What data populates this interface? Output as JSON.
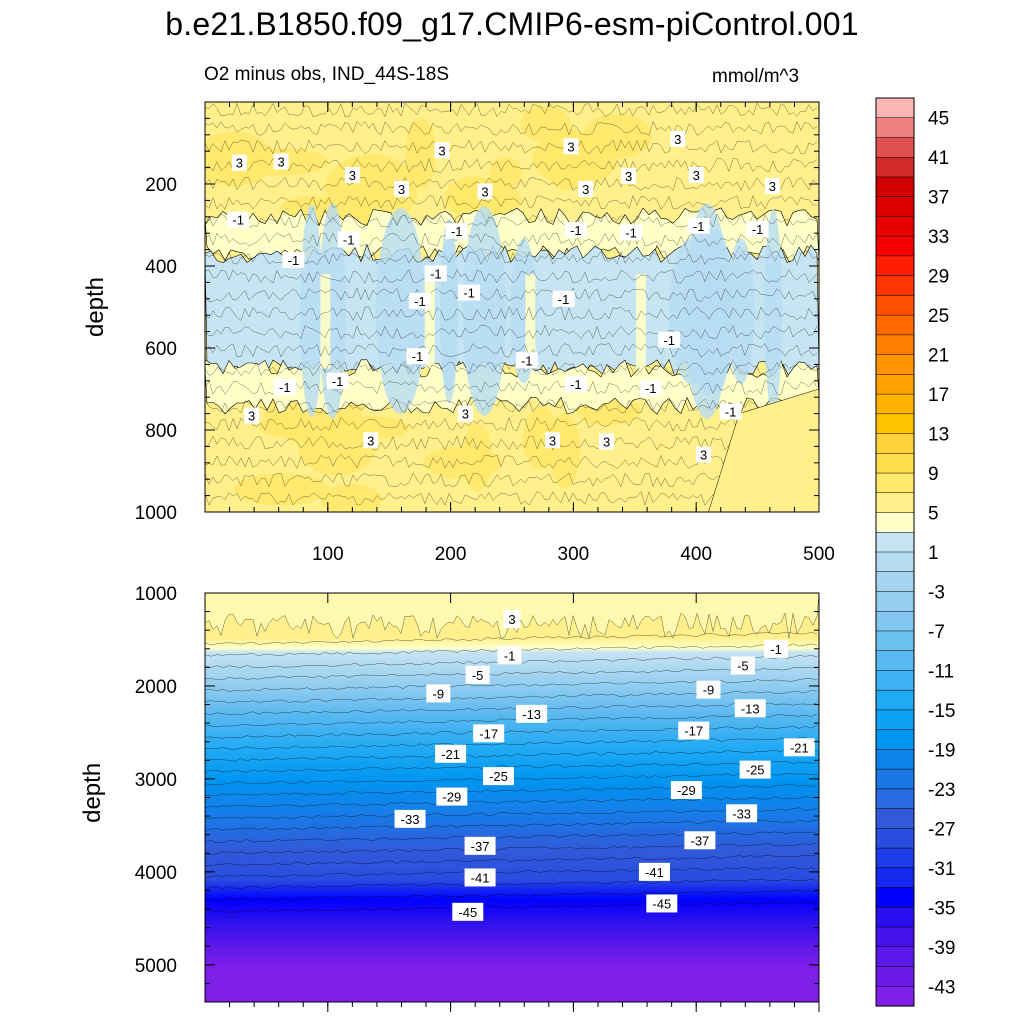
{
  "title": "b.e21.B1850.f09_g17.CMIP6-esm-piControl.001",
  "subtitle": "O2 minus obs, IND_44S-18S",
  "units": "mmol/m^3",
  "chart_data": [
    {
      "type": "heatmap",
      "panel": "upper",
      "x": {
        "ticks": [
          100,
          200,
          300,
          400,
          500
        ],
        "range": [
          0,
          500
        ]
      },
      "y": {
        "label": "depth",
        "ticks": [
          200,
          400,
          600,
          800,
          1000
        ],
        "range": [
          0,
          1000
        ],
        "reversed": true
      },
      "zones": [
        {
          "depth_range": [
            0,
            280
          ],
          "value": 3
        },
        {
          "depth_range": [
            280,
            370
          ],
          "value": 1
        },
        {
          "depth_range": [
            370,
            650
          ],
          "value": -1
        },
        {
          "depth_range": [
            650,
            740
          ],
          "value": 1
        },
        {
          "depth_range": [
            740,
            1000
          ],
          "value": 3
        }
      ],
      "contour_labels": [
        {
          "text": "3",
          "x": 28,
          "d": 148
        },
        {
          "text": "3",
          "x": 62,
          "d": 145
        },
        {
          "text": "3",
          "x": 120,
          "d": 178
        },
        {
          "text": "3",
          "x": 160,
          "d": 212
        },
        {
          "text": "3",
          "x": 193,
          "d": 118
        },
        {
          "text": "3",
          "x": 228,
          "d": 218
        },
        {
          "text": "3",
          "x": 298,
          "d": 108
        },
        {
          "text": "3",
          "x": 310,
          "d": 212
        },
        {
          "text": "3",
          "x": 345,
          "d": 180
        },
        {
          "text": "3",
          "x": 385,
          "d": 90
        },
        {
          "text": "3",
          "x": 400,
          "d": 178
        },
        {
          "text": "3",
          "x": 462,
          "d": 205
        },
        {
          "text": "-1",
          "x": 27,
          "d": 287
        },
        {
          "text": "-1",
          "x": 72,
          "d": 385
        },
        {
          "text": "-1",
          "x": 117,
          "d": 335
        },
        {
          "text": "-1",
          "x": 205,
          "d": 315
        },
        {
          "text": "-1",
          "x": 188,
          "d": 418
        },
        {
          "text": "-1",
          "x": 175,
          "d": 485
        },
        {
          "text": "-1",
          "x": 215,
          "d": 465
        },
        {
          "text": "-1",
          "x": 173,
          "d": 620
        },
        {
          "text": "-1",
          "x": 65,
          "d": 695
        },
        {
          "text": "-1",
          "x": 108,
          "d": 680
        },
        {
          "text": "-1",
          "x": 262,
          "d": 630
        },
        {
          "text": "-1",
          "x": 292,
          "d": 480
        },
        {
          "text": "-1",
          "x": 302,
          "d": 312
        },
        {
          "text": "-1",
          "x": 347,
          "d": 318
        },
        {
          "text": "-1",
          "x": 402,
          "d": 302
        },
        {
          "text": "-1",
          "x": 450,
          "d": 310
        },
        {
          "text": "-1",
          "x": 378,
          "d": 580
        },
        {
          "text": "-1",
          "x": 302,
          "d": 688
        },
        {
          "text": "-1",
          "x": 363,
          "d": 698
        },
        {
          "text": "-1",
          "x": 428,
          "d": 755
        },
        {
          "text": "3",
          "x": 38,
          "d": 765
        },
        {
          "text": "3",
          "x": 135,
          "d": 825
        },
        {
          "text": "3",
          "x": 212,
          "d": 760
        },
        {
          "text": "3",
          "x": 283,
          "d": 825
        },
        {
          "text": "3",
          "x": 327,
          "d": 828
        },
        {
          "text": "3",
          "x": 406,
          "d": 860
        }
      ]
    },
    {
      "type": "heatmap",
      "panel": "lower",
      "x": {
        "range": [
          0,
          500
        ]
      },
      "y": {
        "label": "depth",
        "ticks": [
          1000,
          2000,
          3000,
          4000,
          5000
        ],
        "range": [
          1000,
          5400
        ],
        "reversed": true
      },
      "gradient": {
        "interval": 4,
        "min_value": -45,
        "surface_value": 3
      },
      "contour_labels": [
        {
          "text": "3",
          "x": 250,
          "d": 1280
        },
        {
          "text": "-1",
          "x": 248,
          "d": 1670
        },
        {
          "text": "-1",
          "x": 465,
          "d": 1600
        },
        {
          "text": "-5",
          "x": 222,
          "d": 1880
        },
        {
          "text": "-5",
          "x": 438,
          "d": 1780
        },
        {
          "text": "-9",
          "x": 190,
          "d": 2080
        },
        {
          "text": "-9",
          "x": 410,
          "d": 2040
        },
        {
          "text": "-13",
          "x": 266,
          "d": 2300
        },
        {
          "text": "-13",
          "x": 444,
          "d": 2240
        },
        {
          "text": "-17",
          "x": 231,
          "d": 2510
        },
        {
          "text": "-17",
          "x": 398,
          "d": 2480
        },
        {
          "text": "-21",
          "x": 200,
          "d": 2730
        },
        {
          "text": "-21",
          "x": 484,
          "d": 2660
        },
        {
          "text": "-25",
          "x": 239,
          "d": 2970
        },
        {
          "text": "-25",
          "x": 448,
          "d": 2900
        },
        {
          "text": "-29",
          "x": 201,
          "d": 3190
        },
        {
          "text": "-29",
          "x": 392,
          "d": 3120
        },
        {
          "text": "-33",
          "x": 167,
          "d": 3430
        },
        {
          "text": "-33",
          "x": 437,
          "d": 3370
        },
        {
          "text": "-37",
          "x": 224,
          "d": 3720
        },
        {
          "text": "-37",
          "x": 403,
          "d": 3660
        },
        {
          "text": "-41",
          "x": 224,
          "d": 4060
        },
        {
          "text": "-41",
          "x": 366,
          "d": 4000
        },
        {
          "text": "-45",
          "x": 214,
          "d": 4430
        },
        {
          "text": "-45",
          "x": 372,
          "d": 4340
        }
      ]
    }
  ],
  "colorbar": {
    "labels": [
      "45",
      "41",
      "37",
      "33",
      "29",
      "25",
      "21",
      "17",
      "13",
      "9",
      "5",
      "1",
      "-3",
      "-7",
      "-11",
      "-15",
      "-19",
      "-23",
      "-27",
      "-31",
      "-35",
      "-39",
      "-43"
    ],
    "colors": [
      "#fbb5b5",
      "#f08080",
      "#e05050",
      "#d02a2a",
      "#d00000",
      "#dc0000",
      "#e80000",
      "#f80000",
      "#ff1e00",
      "#ff3600",
      "#ff5000",
      "#ff6a00",
      "#ff8000",
      "#ff9400",
      "#ffa200",
      "#ffb300",
      "#ffc400",
      "#ffd23c",
      "#ffdf4a",
      "#ffe86a",
      "#fff08c",
      "#ffffc8",
      "#c6e4f2",
      "#b6dcf2",
      "#a6d4f0",
      "#96cef0",
      "#82c6f0",
      "#6cc0f0",
      "#58b8f0",
      "#3eb2f2",
      "#20aaf4",
      "#0ca2f4",
      "#0096f0",
      "#0b85ea",
      "#1a78e6",
      "#2a6ae2",
      "#325ad8",
      "#2a4de0",
      "#1e3ce8",
      "#1428f0",
      "#0000ff",
      "#2a10ee",
      "#4412ec",
      "#5a18ea",
      "#6c1ae8",
      "#7d1fe8"
    ]
  }
}
